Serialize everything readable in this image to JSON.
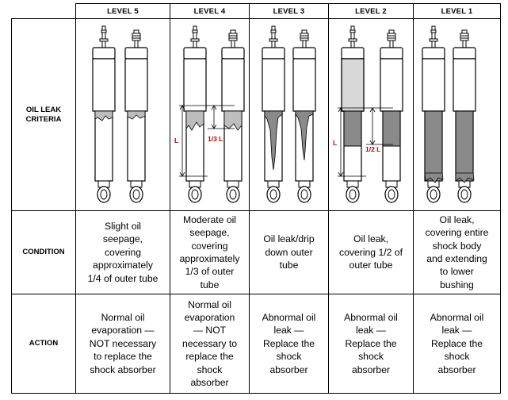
{
  "table": {
    "levels": [
      "LEVEL 5",
      "LEVEL 4",
      "LEVEL 3",
      "LEVEL 2",
      "LEVEL 1"
    ],
    "row_labels": {
      "oil_leak": "OIL LEAK\nCRITERIA",
      "condition": "CONDITION",
      "action": "ACTION"
    },
    "conditions": [
      "Slight oil\nseepage,\ncovering\napproximately\n1/4 of outer tube",
      "Moderate oil\nseepage,\ncovering\napproximately\n1/3 of outer\ntube",
      "Oil leak/drip\ndown outer\ntube",
      "Oil leak,\ncovering 1/2 of\nouter tube",
      "Oil leak,\ncovering entire\nshock body\nand extending\nto lower\nbushing"
    ],
    "actions": [
      "Normal oil\nevaporation —\nNOT necessary\nto replace the\nshock absorber",
      "Normal oil\nevaporation\n— NOT\nnecessary to\nreplace the\nshock\nabsorber",
      "Abnormal oil\nleak —\nReplace the\nshock\nabsorber",
      "Abnormal oil\nleak —\nReplace the\nshock\nabsorber",
      "Abnormal oil\nleak —\nReplace the\nshock\nabsorber"
    ]
  },
  "diagram_labels": {
    "level4_length": "L",
    "level4_fraction": "1/3 L",
    "level2_length": "L",
    "level2_fraction": "1/2 L"
  },
  "colors": {
    "line": "#000000",
    "oil_light": "#bdbdbd",
    "oil_dark": "#8a8a8a",
    "label_red": "#c00000"
  }
}
